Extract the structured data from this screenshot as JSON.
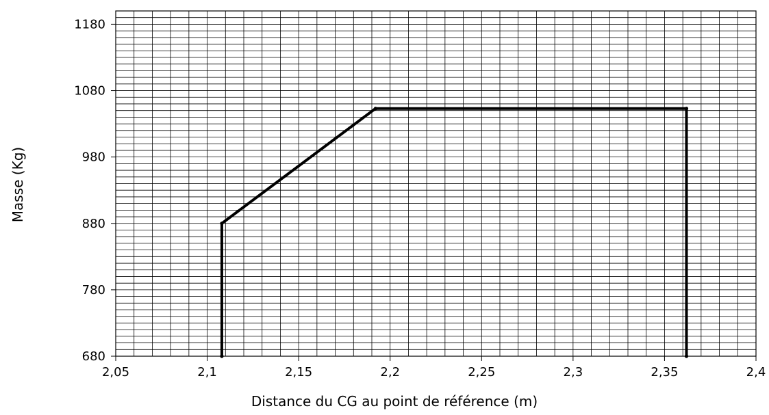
{
  "chart_data": {
    "type": "line",
    "title": "",
    "xlabel": "Distance du  CG au point de référence (m)",
    "ylabel": "Masse  (Kg)",
    "xlim": [
      2.05,
      2.4
    ],
    "ylim": [
      680,
      1200
    ],
    "x_ticks": [
      2.05,
      2.1,
      2.15,
      2.2,
      2.25,
      2.3,
      2.35,
      2.4
    ],
    "x_tick_labels": [
      "2,05",
      "2,1",
      "2,15",
      "2,2",
      "2,25",
      "2,3",
      "2,35",
      "2,4"
    ],
    "y_ticks": [
      680,
      780,
      880,
      980,
      1080,
      1180
    ],
    "y_tick_labels": [
      "680",
      "780",
      "880",
      "980",
      "1080",
      "1180"
    ],
    "grid": true,
    "grid_minor_x": 0.01,
    "grid_minor_y": 10,
    "series": [
      {
        "x": [
          2.108,
          2.108,
          2.192,
          2.362,
          2.362
        ],
        "y": [
          680,
          880,
          1053,
          1053,
          680
        ],
        "color": "#000000"
      }
    ]
  }
}
